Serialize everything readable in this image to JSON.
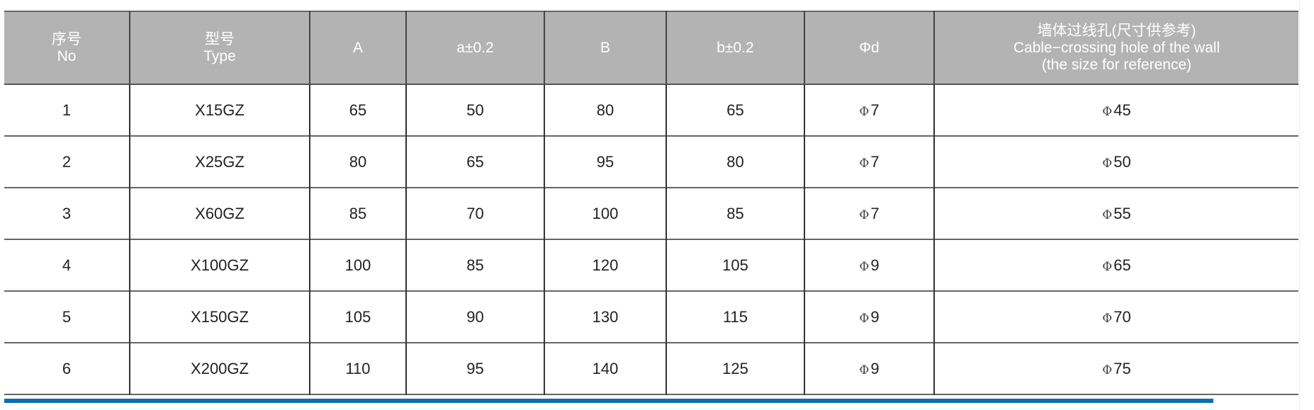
{
  "header": {
    "no_cn": "序号",
    "no_en": "No",
    "type_cn": "型号",
    "type_en": "Type",
    "A": "A",
    "a": "a±0.2",
    "B": "B",
    "b": "b±0.2",
    "d": "Φd",
    "hole_cn": "墙体过线孔(尺寸供参考)",
    "hole_en1": "Cable−crossing hole of the wall",
    "hole_en2": "(the size for reference)"
  },
  "phi": "Φ",
  "rows": [
    {
      "no": "1",
      "type": "X15GZ",
      "A": "65",
      "a": "50",
      "B": "80",
      "b": "65",
      "d": "7",
      "hole": "45"
    },
    {
      "no": "2",
      "type": "X25GZ",
      "A": "80",
      "a": "65",
      "B": "95",
      "b": "80",
      "d": "7",
      "hole": "50"
    },
    {
      "no": "3",
      "type": "X60GZ",
      "A": "85",
      "a": "70",
      "B": "100",
      "b": "85",
      "d": "7",
      "hole": "55"
    },
    {
      "no": "4",
      "type": "X100GZ",
      "A": "100",
      "a": "85",
      "B": "120",
      "b": "105",
      "d": "9",
      "hole": "65"
    },
    {
      "no": "5",
      "type": "X150GZ",
      "A": "105",
      "a": "90",
      "B": "130",
      "b": "115",
      "d": "9",
      "hole": "70"
    },
    {
      "no": "6",
      "type": "X200GZ",
      "A": "110",
      "a": "95",
      "B": "140",
      "b": "125",
      "d": "9",
      "hole": "75"
    }
  ],
  "colors": {
    "header_bg": "#b3b3b3",
    "accent_line": "#0a6fb0"
  }
}
